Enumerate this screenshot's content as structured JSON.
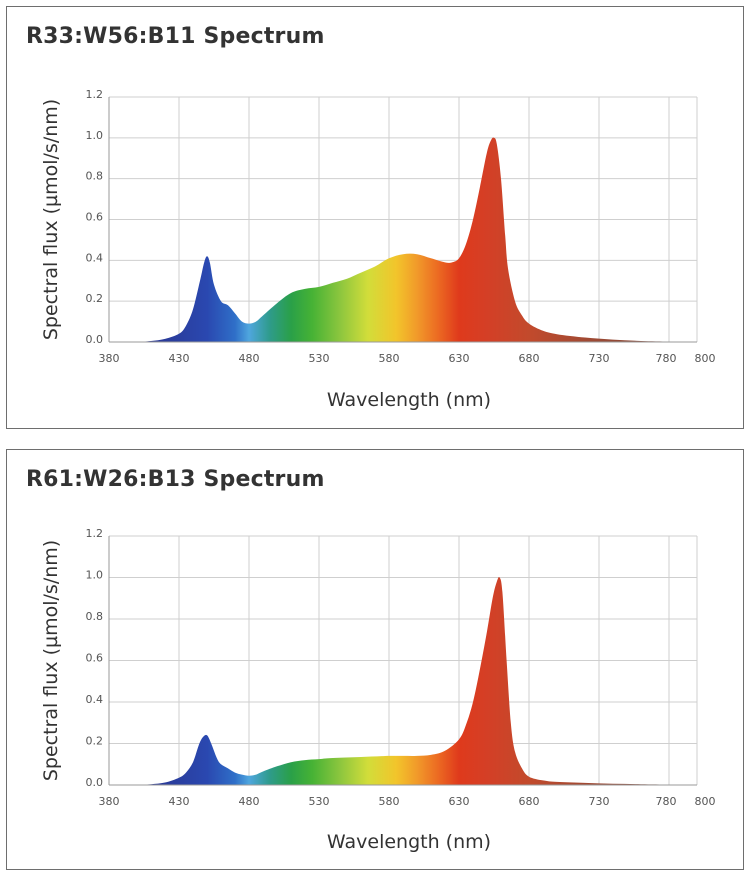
{
  "charts": [
    {
      "title": "R33:W56:B11 Spectrum",
      "xlabel": "Wavelength (nm)",
      "ylabel": "Spectral flux (µmol/s/nm)"
    },
    {
      "title": "R61:W26:B13 Spectrum",
      "xlabel": "Wavelength (nm)",
      "ylabel": "Spectral flux (µmol/s/nm)"
    }
  ],
  "chart_data": [
    {
      "type": "area",
      "title": "R33:W56:B11 Spectrum",
      "xlabel": "Wavelength (nm)",
      "ylabel": "Spectral flux (µmol/s/nm)",
      "xlim": [
        380,
        800
      ],
      "ylim": [
        0,
        1.2
      ],
      "x_ticks": [
        "380",
        "430",
        "480",
        "530",
        "580",
        "630",
        "680",
        "730",
        "780",
        "800"
      ],
      "y_ticks": [
        "0.0",
        "0.2",
        "0.4",
        "0.6",
        "0.8",
        "1.0",
        "1.2"
      ],
      "grid": true,
      "x": [
        400,
        410,
        420,
        430,
        435,
        440,
        445,
        448,
        450,
        452,
        455,
        460,
        465,
        470,
        475,
        480,
        485,
        490,
        500,
        510,
        520,
        530,
        540,
        550,
        560,
        570,
        580,
        590,
        600,
        610,
        620,
        625,
        630,
        635,
        640,
        645,
        650,
        653,
        655,
        657,
        660,
        663,
        665,
        670,
        675,
        680,
        690,
        700,
        720,
        740,
        760,
        780,
        790
      ],
      "values": [
        0.0,
        0.005,
        0.015,
        0.04,
        0.08,
        0.16,
        0.3,
        0.39,
        0.42,
        0.39,
        0.28,
        0.2,
        0.18,
        0.14,
        0.1,
        0.09,
        0.1,
        0.13,
        0.19,
        0.24,
        0.26,
        0.27,
        0.29,
        0.31,
        0.34,
        0.37,
        0.41,
        0.43,
        0.43,
        0.41,
        0.39,
        0.39,
        0.41,
        0.48,
        0.6,
        0.76,
        0.93,
        0.99,
        1.0,
        0.97,
        0.8,
        0.52,
        0.36,
        0.2,
        0.13,
        0.09,
        0.055,
        0.038,
        0.022,
        0.012,
        0.005,
        0.002,
        0.0
      ]
    },
    {
      "type": "area",
      "title": "R61:W26:B13 Spectrum",
      "xlabel": "Wavelength (nm)",
      "ylabel": "Spectral flux (µmol/s/nm)",
      "xlim": [
        380,
        800
      ],
      "ylim": [
        0,
        1.2
      ],
      "x_ticks": [
        "380",
        "430",
        "480",
        "530",
        "580",
        "630",
        "680",
        "730",
        "780",
        "800"
      ],
      "y_ticks": [
        "0.0",
        "0.2",
        "0.4",
        "0.6",
        "0.8",
        "1.0",
        "1.2"
      ],
      "grid": true,
      "x": [
        400,
        410,
        420,
        430,
        435,
        440,
        444,
        447,
        450,
        453,
        457,
        460,
        465,
        470,
        475,
        480,
        485,
        490,
        500,
        510,
        520,
        530,
        540,
        560,
        580,
        590,
        600,
        610,
        620,
        630,
        635,
        640,
        645,
        650,
        654,
        657,
        659,
        661,
        664,
        667,
        670,
        675,
        680,
        690,
        700,
        720,
        740,
        760,
        780,
        790
      ],
      "values": [
        0.0,
        0.004,
        0.012,
        0.035,
        0.06,
        0.11,
        0.19,
        0.23,
        0.24,
        0.2,
        0.13,
        0.1,
        0.08,
        0.06,
        0.05,
        0.045,
        0.05,
        0.065,
        0.09,
        0.11,
        0.12,
        0.125,
        0.13,
        0.135,
        0.14,
        0.14,
        0.14,
        0.145,
        0.165,
        0.22,
        0.29,
        0.4,
        0.56,
        0.74,
        0.9,
        0.98,
        1.0,
        0.93,
        0.6,
        0.3,
        0.16,
        0.08,
        0.04,
        0.022,
        0.015,
        0.01,
        0.006,
        0.004,
        0.002,
        0.0
      ]
    }
  ]
}
